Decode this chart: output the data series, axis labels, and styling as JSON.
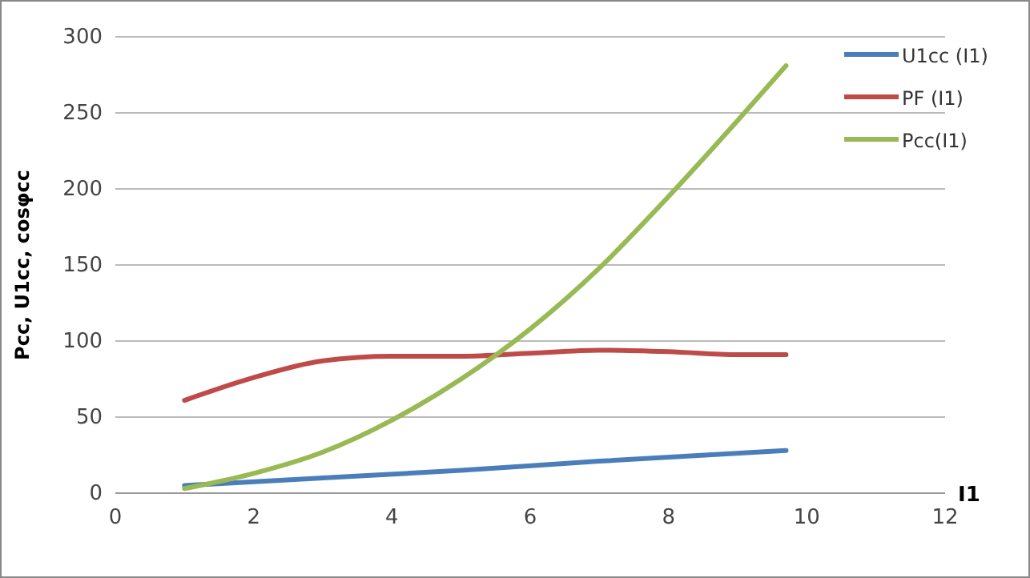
{
  "chart_data": {
    "type": "line",
    "xlabel": "I1",
    "ylabel": "Pcc, U1cc, cosφcc",
    "xlim": [
      0,
      12
    ],
    "xticks": [
      0,
      2,
      4,
      6,
      8,
      10,
      12
    ],
    "ylim": [
      0,
      300
    ],
    "yticks": [
      0,
      50,
      100,
      150,
      200,
      250,
      300
    ],
    "grid": "y",
    "legend": "top right",
    "marker": "none",
    "line_style": "solid",
    "series": [
      {
        "name": "U1cc (I1)",
        "color": "#4a7ebb",
        "x": [
          1,
          3,
          5,
          7,
          9.7
        ],
        "values": [
          5,
          10,
          15,
          21,
          28
        ]
      },
      {
        "name": "PF (I1)",
        "color": "#be4b48",
        "x": [
          1,
          2,
          3,
          4,
          5,
          6,
          7,
          8,
          9,
          9.7
        ],
        "values": [
          61,
          76,
          87,
          90,
          90,
          92,
          94,
          93,
          91,
          91
        ]
      },
      {
        "name": "Pcc(I1)",
        "color": "#98b954",
        "x": [
          1,
          2,
          3,
          4,
          5,
          6,
          7,
          8,
          9,
          9.7
        ],
        "values": [
          3,
          13,
          27,
          48,
          75,
          108,
          148,
          195,
          245,
          281
        ]
      }
    ]
  }
}
